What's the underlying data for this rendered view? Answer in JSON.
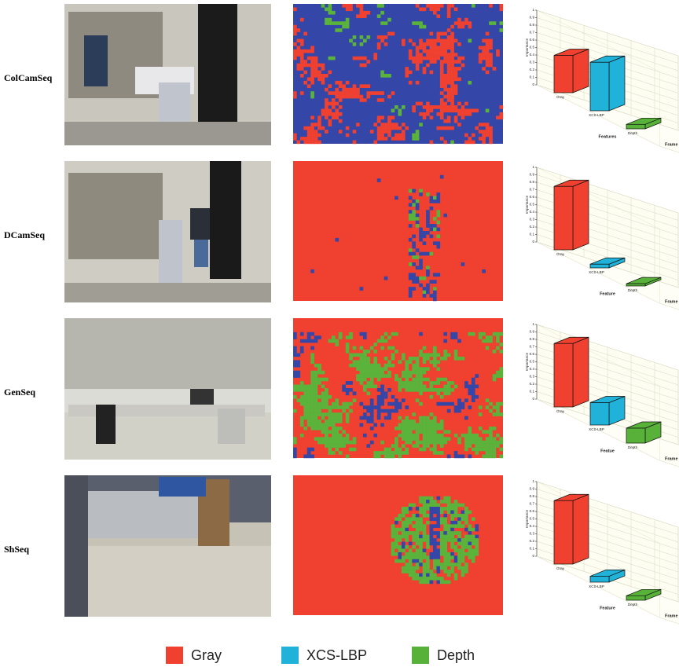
{
  "rows": [
    {
      "label": "ColCamSeq",
      "chart": {
        "type": "bar3d",
        "categories": [
          "Gray",
          "XCS-LBP",
          "Depth"
        ],
        "values": [
          0.5,
          0.65,
          0.06
        ],
        "ylim": [
          0,
          1
        ],
        "yticks": [
          0,
          0.1,
          0.2,
          0.3,
          0.4,
          0.5,
          0.6,
          0.7,
          0.8,
          0.9,
          1
        ],
        "ylabel": "Importance",
        "xlabel": "Features",
        "zlabel": "Frame"
      }
    },
    {
      "label": "DCamSeq",
      "chart": {
        "type": "bar3d",
        "categories": [
          "Gray",
          "XCS-LBP",
          "Depth"
        ],
        "values": [
          0.85,
          0.05,
          0.03
        ],
        "ylim": [
          0,
          1
        ],
        "yticks": [
          0,
          0.1,
          0.2,
          0.3,
          0.4,
          0.5,
          0.6,
          0.7,
          0.8,
          0.9,
          1
        ],
        "ylabel": "Importance",
        "xlabel": "Feature",
        "zlabel": "Frame"
      }
    },
    {
      "label": "GenSeq",
      "chart": {
        "type": "bar3d",
        "categories": [
          "Gray",
          "XCS-LBP",
          "Depth"
        ],
        "values": [
          0.85,
          0.3,
          0.2
        ],
        "ylim": [
          0,
          1
        ],
        "yticks": [
          0,
          0.1,
          0.2,
          0.3,
          0.4,
          0.5,
          0.6,
          0.7,
          0.8,
          0.9,
          1
        ],
        "ylabel": "Importance",
        "xlabel": "Featue",
        "zlabel": "Frame"
      }
    },
    {
      "label": "ShSeq",
      "chart": {
        "type": "bar3d",
        "categories": [
          "Gray",
          "XCS-LBP",
          "Depth"
        ],
        "values": [
          0.85,
          0.08,
          0.06
        ],
        "ylim": [
          0,
          1
        ],
        "yticks": [
          0,
          0.1,
          0.2,
          0.3,
          0.4,
          0.5,
          0.6,
          0.7,
          0.8,
          0.9,
          1
        ],
        "ylabel": "Importance",
        "xlabel": "Feature",
        "zlabel": "Frame"
      }
    }
  ],
  "legend": [
    {
      "name": "Gray",
      "color": "#f0402f"
    },
    {
      "name": "XCS-LBP",
      "color": "#20b2d8"
    },
    {
      "name": "Depth",
      "color": "#58b23a"
    }
  ]
}
